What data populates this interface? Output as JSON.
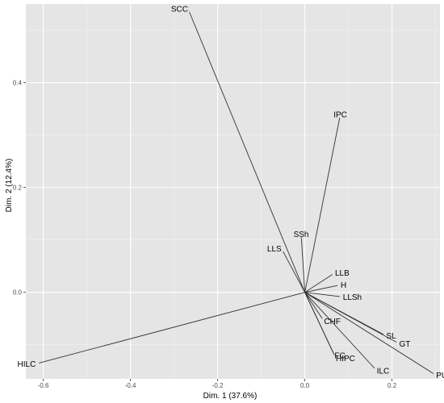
{
  "chart_data": {
    "type": "scatter",
    "subtype": "pca-variable-loadings",
    "title": "",
    "xlabel": "Dim. 1 (37.6%)",
    "ylabel": "Dim. 2 (12.4%)",
    "xlim": [
      -0.64,
      0.31
    ],
    "ylim": [
      -0.165,
      0.55
    ],
    "x_ticks": [
      -0.6,
      -0.4,
      -0.2,
      0.0,
      0.2
    ],
    "x_tick_labels": [
      "-0.6",
      "-0.4",
      "-0.2",
      "0.0",
      "0.2"
    ],
    "y_ticks": [
      0.0,
      0.2,
      0.4
    ],
    "y_tick_labels": [
      "0.0",
      "0.2",
      "0.4"
    ],
    "grid": true,
    "origin": [
      0,
      0
    ],
    "colors": {
      "panel": "#e5e5e5",
      "grid_major": "#ffffff",
      "arrow": "#333333"
    },
    "variables": [
      {
        "name": "SCC",
        "x": -0.265,
        "y": 0.535
      },
      {
        "name": "IPC",
        "x": 0.08,
        "y": 0.333
      },
      {
        "name": "SSh",
        "x": -0.008,
        "y": 0.105
      },
      {
        "name": "LLS",
        "x": -0.05,
        "y": 0.078
      },
      {
        "name": "LLB",
        "x": 0.063,
        "y": 0.034
      },
      {
        "name": "H",
        "x": 0.075,
        "y": 0.013
      },
      {
        "name": "LLSh",
        "x": 0.08,
        "y": -0.008
      },
      {
        "name": "CHF",
        "x": 0.04,
        "y": -0.05
      },
      {
        "name": "SL",
        "x": 0.18,
        "y": -0.08
      },
      {
        "name": "GT",
        "x": 0.21,
        "y": -0.095
      },
      {
        "name": "FC",
        "x": 0.065,
        "y": -0.115
      },
      {
        "name": "HIPC",
        "x": 0.068,
        "y": -0.12
      },
      {
        "name": "ILC",
        "x": 0.16,
        "y": -0.145
      },
      {
        "name": "PUBC",
        "x": 0.295,
        "y": -0.155
      },
      {
        "name": "HILC",
        "x": -0.61,
        "y": -0.135
      }
    ]
  }
}
